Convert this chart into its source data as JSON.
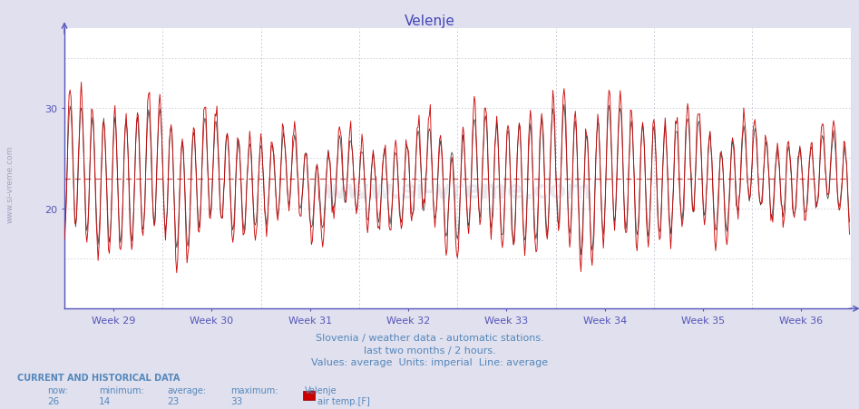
{
  "title": "Velenje",
  "title_color": "#4444bb",
  "bg_color": "#e0e0ee",
  "plot_bg_color": "#ffffff",
  "grid_color": "#dddddd",
  "grid_dotted_color": "#cccccc",
  "x_labels": [
    "Week 29",
    "Week 30",
    "Week 31",
    "Week 32",
    "Week 33",
    "Week 34",
    "Week 35",
    "Week 36"
  ],
  "y_ticks": [
    20,
    30
  ],
  "ylim": [
    10,
    38
  ],
  "xlim": [
    0,
    840
  ],
  "average_line_y": 23,
  "average_line_color": "#cc3333",
  "line_color": "#cc0000",
  "avg_line_color": "#333333",
  "axis_color": "#5555bb",
  "footer_line1": "Slovenia / weather data - automatic stations.",
  "footer_line2": "last two months / 2 hours.",
  "footer_line3": "Values: average  Units: imperial  Line: average",
  "footer_color": "#5588bb",
  "current_and_historical": "CURRENT AND HISTORICAL DATA",
  "now_label": "now:",
  "min_label": "minimum:",
  "avg_label": "average:",
  "max_label": "maximum:",
  "station_label": "Velenje",
  "now_val": "26",
  "min_val": "14",
  "avg_val": "23",
  "max_val": "33",
  "series_label": "air temp.[F]",
  "label_color": "#5588bb",
  "watermark_text": "www.si-vreme.com",
  "side_text": "www.si-vreme.com",
  "n_points": 840
}
